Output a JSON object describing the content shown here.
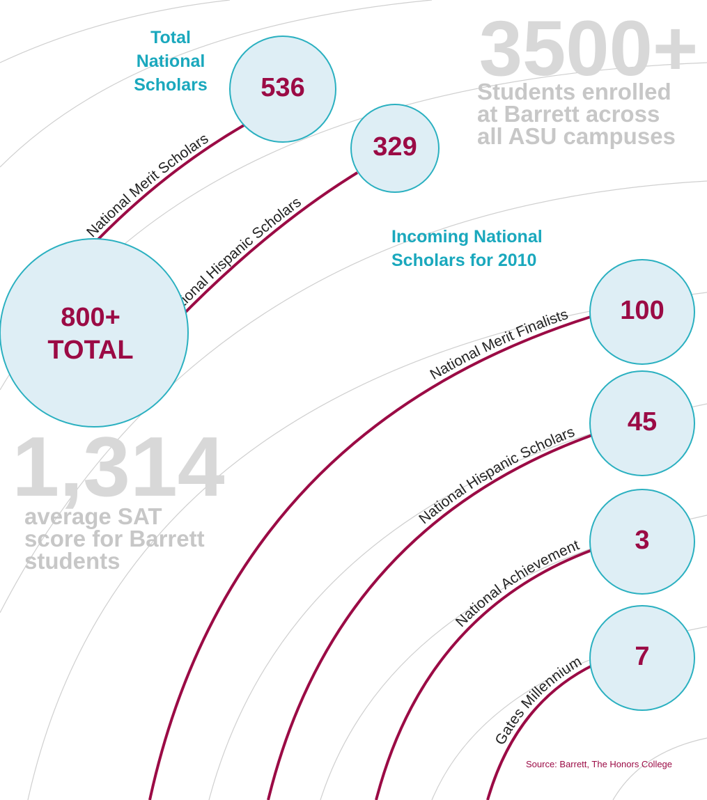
{
  "total": {
    "heading": [
      "Total",
      "National",
      "Scholars"
    ],
    "total_value": "800+",
    "total_label": "TOTAL",
    "groups": [
      {
        "label": "National Merit Scholars",
        "value": 536
      },
      {
        "label": "National Hispanic Scholars",
        "value": 329
      }
    ]
  },
  "enrollment": {
    "value": "3500+",
    "lines": [
      "Students enrolled",
      "at Barrett across",
      "all ASU campuses"
    ]
  },
  "incoming": {
    "heading": [
      "Incoming National",
      "Scholars for 2010"
    ],
    "groups": [
      {
        "label": "National Merit Finalists",
        "value": 100
      },
      {
        "label": "National Hispanic Scholars",
        "value": 45
      },
      {
        "label": "National Achievement",
        "value": 3
      },
      {
        "label": "Gates Millennium",
        "value": 7
      }
    ]
  },
  "sat": {
    "value": "1,314",
    "lines": [
      "average SAT",
      "score for Barrett",
      "students"
    ]
  },
  "source": "Source: Barrett, The Honors College"
}
